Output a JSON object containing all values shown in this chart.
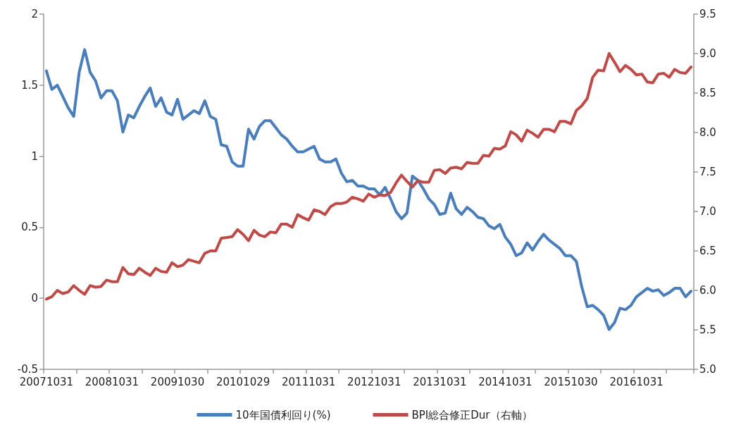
{
  "chart_data": {
    "type": "line",
    "categories": [
      "20071031",
      null,
      null,
      null,
      null,
      null,
      null,
      null,
      null,
      null,
      null,
      null,
      "20081031",
      null,
      null,
      null,
      null,
      null,
      null,
      null,
      null,
      null,
      null,
      null,
      "20091030",
      null,
      null,
      null,
      null,
      null,
      null,
      null,
      null,
      null,
      null,
      null,
      "20101029",
      null,
      null,
      null,
      null,
      null,
      null,
      null,
      null,
      null,
      null,
      null,
      "20111031",
      null,
      null,
      null,
      null,
      null,
      null,
      null,
      null,
      null,
      null,
      null,
      "20121031",
      null,
      null,
      null,
      null,
      null,
      null,
      null,
      null,
      null,
      null,
      null,
      "20131031",
      null,
      null,
      null,
      null,
      null,
      null,
      null,
      null,
      null,
      null,
      null,
      "20141031",
      null,
      null,
      null,
      null,
      null,
      null,
      null,
      null,
      null,
      null,
      null,
      "20151030",
      null,
      null,
      null,
      null,
      null,
      null,
      null,
      null,
      null,
      null,
      null,
      "20161031",
      null,
      null,
      null,
      null,
      null,
      null,
      null,
      null,
      null,
      null
    ],
    "series": [
      {
        "name": "10年国債利回り(%)",
        "color": "#4a7ebb",
        "values": [
          1.6,
          1.47,
          1.5,
          1.42,
          1.34,
          1.28,
          1.59,
          1.75,
          1.59,
          1.53,
          1.41,
          1.46,
          1.46,
          1.39,
          1.17,
          1.29,
          1.27,
          1.35,
          1.42,
          1.48,
          1.35,
          1.41,
          1.31,
          1.29,
          1.4,
          1.26,
          1.29,
          1.32,
          1.3,
          1.39,
          1.28,
          1.26,
          1.08,
          1.07,
          0.96,
          0.93,
          0.93,
          1.19,
          1.12,
          1.21,
          1.25,
          1.25,
          1.2,
          1.15,
          1.12,
          1.07,
          1.03,
          1.03,
          1.05,
          1.07,
          0.98,
          0.96,
          0.96,
          0.98,
          0.88,
          0.82,
          0.83,
          0.79,
          0.79,
          0.77,
          0.77,
          0.73,
          0.78,
          0.7,
          0.61,
          0.56,
          0.6,
          0.86,
          0.83,
          0.77,
          0.7,
          0.66,
          0.59,
          0.6,
          0.74,
          0.63,
          0.59,
          0.64,
          0.61,
          0.57,
          0.56,
          0.51,
          0.49,
          0.52,
          0.43,
          0.38,
          0.3,
          0.32,
          0.39,
          0.34,
          0.4,
          0.45,
          0.41,
          0.38,
          0.35,
          0.3,
          0.3,
          0.26,
          0.08,
          -0.06,
          -0.05,
          -0.08,
          -0.12,
          -0.22,
          -0.17,
          -0.07,
          -0.08,
          -0.05,
          0.01,
          0.04,
          0.07,
          0.05,
          0.06,
          0.02,
          0.04,
          0.07,
          0.07,
          0.01,
          0.05
        ]
      },
      {
        "name": "BPI総合修正Dur（右軸）",
        "color": "#be4b48",
        "axis": "y2",
        "values": [
          5.89,
          5.92,
          6.0,
          5.96,
          5.98,
          6.06,
          6.0,
          5.95,
          6.06,
          6.04,
          6.05,
          6.13,
          6.11,
          6.11,
          6.29,
          6.21,
          6.2,
          6.28,
          6.23,
          6.19,
          6.28,
          6.24,
          6.23,
          6.35,
          6.3,
          6.32,
          6.39,
          6.37,
          6.35,
          6.47,
          6.5,
          6.5,
          6.66,
          6.67,
          6.68,
          6.77,
          6.71,
          6.63,
          6.76,
          6.7,
          6.68,
          6.74,
          6.73,
          6.84,
          6.84,
          6.8,
          6.96,
          6.92,
          6.89,
          7.02,
          7.0,
          6.96,
          7.06,
          7.1,
          7.1,
          7.12,
          7.18,
          7.16,
          7.13,
          7.22,
          7.18,
          7.21,
          7.2,
          7.24,
          7.36,
          7.46,
          7.38,
          7.31,
          7.39,
          7.37,
          7.37,
          7.52,
          7.53,
          7.48,
          7.55,
          7.56,
          7.54,
          7.62,
          7.61,
          7.61,
          7.71,
          7.7,
          7.8,
          7.79,
          7.83,
          8.01,
          7.97,
          7.89,
          8.03,
          7.99,
          7.94,
          8.04,
          8.04,
          8.01,
          8.14,
          8.14,
          8.11,
          8.28,
          8.34,
          8.43,
          8.7,
          8.79,
          8.78,
          9.0,
          8.89,
          8.77,
          8.85,
          8.8,
          8.73,
          8.74,
          8.64,
          8.63,
          8.74,
          8.75,
          8.7,
          8.8,
          8.76,
          8.75,
          8.83
        ]
      }
    ],
    "ylim": [
      -0.5,
      2
    ],
    "yticks": [
      -0.5,
      0,
      0.5,
      1,
      1.5,
      2
    ],
    "y2lim": [
      5,
      9.5
    ],
    "y2ticks": [
      {
        "value": 5,
        "label": "5.0"
      },
      {
        "value": 5.5,
        "label": "5.5"
      },
      {
        "value": 6,
        "label": "6.0"
      },
      {
        "value": 6.5,
        "label": "6.5"
      },
      {
        "value": 7,
        "label": "7.0"
      },
      {
        "value": 7.5,
        "label": "7.5"
      },
      {
        "value": 8,
        "label": "8.0"
      },
      {
        "value": 8.5,
        "label": "8.5"
      },
      {
        "value": 9,
        "label": "9.0"
      },
      {
        "value": 9.5,
        "label": "9.5"
      }
    ],
    "grid": false,
    "legend": "bottom",
    "marker": "none",
    "line_style": "solid"
  }
}
